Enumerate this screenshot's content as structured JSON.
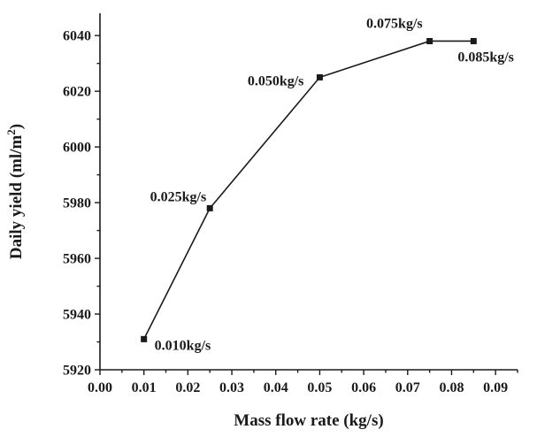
{
  "chart_data": {
    "type": "line",
    "title": "",
    "xlabel": "Mass flow rate (kg/s)",
    "ylabel_main": "Daily yield (ml/m",
    "ylabel_sup": "2",
    "ylabel_tail": ")",
    "xlim": [
      0.0,
      0.095
    ],
    "ylim": [
      5920,
      6048
    ],
    "xticks": [
      "0.00",
      "0.01",
      "0.02",
      "0.03",
      "0.04",
      "0.05",
      "0.06",
      "0.07",
      "0.08",
      "0.09"
    ],
    "yticks": [
      "5920",
      "5940",
      "5960",
      "5980",
      "6000",
      "6020",
      "6040"
    ],
    "grid": false,
    "legend": "none",
    "marker": "square",
    "series": [
      {
        "x": [
          0.01,
          0.025,
          0.05,
          0.075,
          0.085
        ],
        "y": [
          5931,
          5978,
          6025,
          6038,
          6038
        ],
        "labels": [
          "0.010kg/s",
          "0.025kg/s",
          "0.050kg/s",
          "0.075kg/s",
          "0.085kg/s"
        ]
      }
    ]
  }
}
